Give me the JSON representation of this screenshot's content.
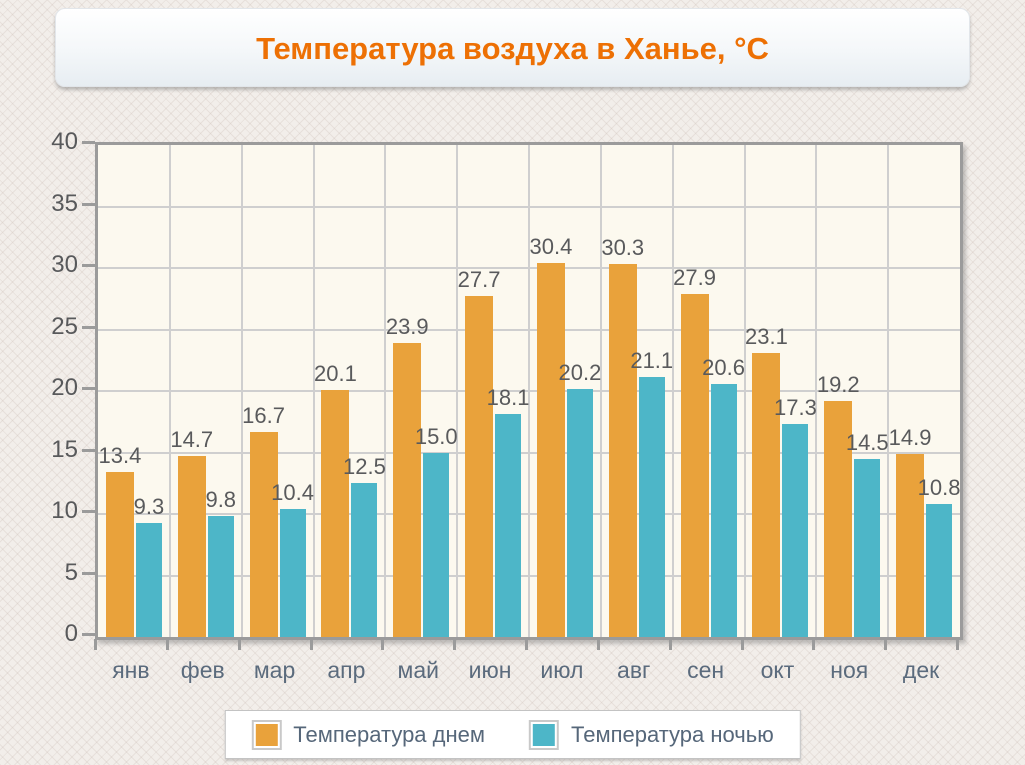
{
  "title": "Температура воздуха в Ханье, °C",
  "legend": {
    "items": [
      {
        "label": "Температура днем",
        "color": "#e9a23b"
      },
      {
        "label": "Температура ночью",
        "color": "#4db6c8"
      }
    ]
  },
  "chart_data": {
    "type": "bar",
    "title": "Температура воздуха в Ханье, °C",
    "categories": [
      "янв",
      "фев",
      "мар",
      "апр",
      "май",
      "июн",
      "июл",
      "авг",
      "сен",
      "окт",
      "ноя",
      "дек"
    ],
    "series": [
      {
        "name": "Температура днем",
        "color": "#e9a23b",
        "values": [
          13.4,
          14.7,
          16.7,
          20.1,
          23.9,
          27.7,
          30.4,
          30.3,
          27.9,
          23.1,
          19.2,
          14.9
        ]
      },
      {
        "name": "Температура ночью",
        "color": "#4db6c8",
        "values": [
          9.3,
          9.8,
          10.4,
          12.5,
          15.0,
          18.1,
          20.2,
          21.1,
          20.6,
          17.3,
          14.5,
          10.8
        ]
      }
    ],
    "xlabel": "",
    "ylabel": "",
    "ylim": [
      0,
      40
    ],
    "ytick_step": 5,
    "grid": true,
    "legend_position": "bottom",
    "value_labels": true
  },
  "colors": {
    "title_text": "#ed7004",
    "day_bar": "#e9a23b",
    "night_bar": "#4db6c8",
    "plot_background": "#fcf9ef",
    "plot_border": "#9b9b9b",
    "gridline": "#cfcfcf",
    "axis_text": "#5b6b7d",
    "value_text": "#595a5c",
    "page_background": "#f2eeea"
  }
}
